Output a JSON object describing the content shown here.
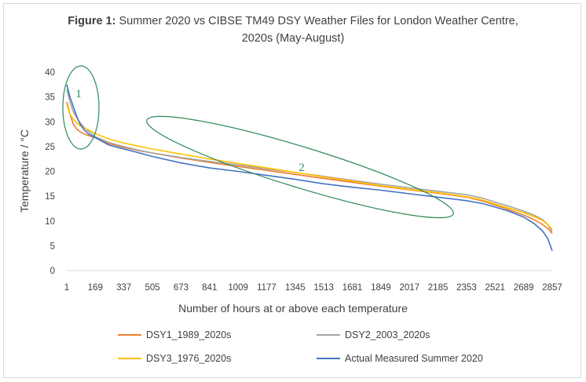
{
  "title": {
    "prefix": "Figure 1:",
    "text": "Summer 2020 vs CIBSE TM49 DSY Weather Files for London Weather Centre,",
    "line2": "2020s (May-August)"
  },
  "chart_data": {
    "type": "line",
    "xlabel": "Number of hours at or above each temperature",
    "ylabel": "Temperature / °C",
    "xlim": [
      1,
      2857
    ],
    "ylim": [
      0,
      40
    ],
    "x_ticks": [
      "1",
      "169",
      "337",
      "505",
      "673",
      "841",
      "1009",
      "1177",
      "1345",
      "1513",
      "1681",
      "1849",
      "2017",
      "2185",
      "2353",
      "2521",
      "2689",
      "2857"
    ],
    "y_ticks": [
      "0",
      "5",
      "10",
      "15",
      "20",
      "25",
      "30",
      "35",
      "40"
    ],
    "legend_position": "bottom",
    "gridlines": false,
    "series": [
      {
        "name": "DSY1_1989_2020s",
        "color": "#ed7d31",
        "x": [
          1,
          20,
          40,
          60,
          80,
          100,
          130,
          169,
          250,
          337,
          420,
          505,
          673,
          841,
          1009,
          1177,
          1345,
          1513,
          1681,
          1849,
          2017,
          2185,
          2353,
          2450,
          2521,
          2600,
          2689,
          2750,
          2800,
          2830,
          2857
        ],
        "y": [
          34,
          31.5,
          29.5,
          28.5,
          28,
          27.6,
          27.2,
          26.8,
          25.6,
          24.8,
          24.2,
          23.7,
          22.7,
          21.8,
          21,
          20.2,
          19.4,
          18.6,
          17.8,
          17,
          16.3,
          15.6,
          14.8,
          14,
          13.2,
          12.3,
          11.2,
          10.3,
          9.3,
          8.5,
          7.5
        ]
      },
      {
        "name": "DSY2_2003_2020s",
        "color": "#a5a5a5",
        "x": [
          1,
          20,
          40,
          60,
          80,
          100,
          130,
          169,
          250,
          337,
          420,
          505,
          673,
          841,
          1009,
          1177,
          1345,
          1513,
          1681,
          1849,
          2017,
          2185,
          2353,
          2450,
          2521,
          2600,
          2689,
          2750,
          2800,
          2830,
          2857
        ],
        "y": [
          36.5,
          34,
          32,
          30.8,
          29.8,
          29,
          28,
          27,
          25.8,
          25,
          24.3,
          23.7,
          22.8,
          22,
          21.3,
          20.5,
          19.8,
          19,
          18.2,
          17.4,
          16.7,
          16,
          15.3,
          14.6,
          13.8,
          13,
          12,
          11.2,
          10.3,
          9.3,
          7.8
        ]
      },
      {
        "name": "DSY3_1976_2020s",
        "color": "#ffc000",
        "x": [
          1,
          20,
          40,
          60,
          80,
          100,
          130,
          169,
          250,
          337,
          420,
          505,
          673,
          841,
          1009,
          1177,
          1345,
          1513,
          1681,
          1849,
          2017,
          2185,
          2353,
          2450,
          2521,
          2600,
          2689,
          2750,
          2800,
          2830,
          2857
        ],
        "y": [
          33.5,
          31.5,
          30.5,
          29.8,
          29.2,
          28.8,
          28.3,
          27.6,
          26.5,
          25.7,
          25.1,
          24.5,
          23.5,
          22.5,
          21.6,
          20.7,
          19.8,
          18.9,
          18,
          17.1,
          16.4,
          15.7,
          14.9,
          14.2,
          13.4,
          12.6,
          11.7,
          10.9,
          10.1,
          9.3,
          8.3
        ]
      },
      {
        "name": "Actual Measured Summer 2020",
        "color": "#4472c4",
        "x": [
          1,
          20,
          40,
          60,
          80,
          100,
          130,
          169,
          250,
          337,
          420,
          505,
          673,
          841,
          1009,
          1177,
          1345,
          1513,
          1681,
          1849,
          2017,
          2185,
          2353,
          2450,
          2521,
          2600,
          2689,
          2750,
          2800,
          2830,
          2857
        ],
        "y": [
          37.5,
          35,
          33,
          31,
          29.5,
          28.5,
          27.5,
          26.8,
          25.3,
          24.5,
          23.8,
          23,
          21.7,
          20.7,
          20,
          19.2,
          18.4,
          17.5,
          16.8,
          16.2,
          15.5,
          14.8,
          14.1,
          13.5,
          12.8,
          12,
          10.8,
          9.5,
          8,
          6.5,
          4
        ]
      }
    ],
    "annotations": [
      {
        "label": "1",
        "cx": 80,
        "cy": 33,
        "rx": 105,
        "ry": 8.5
      },
      {
        "label": "2",
        "cx": 1350,
        "cy": 20,
        "rx": 900,
        "ry": 3
      }
    ]
  }
}
